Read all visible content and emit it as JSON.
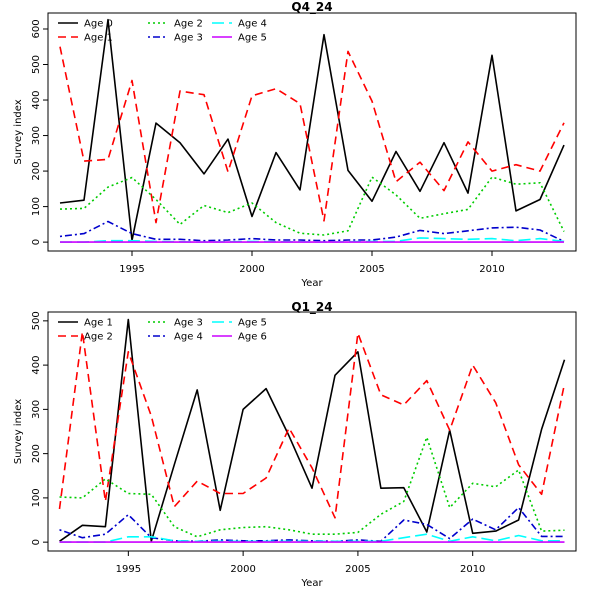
{
  "chart_data": [
    {
      "type": "line",
      "title": "Q4_24",
      "xlabel": "Year",
      "ylabel": "Survey index",
      "xlim": [
        1991.5,
        2013.5
      ],
      "ylim": [
        -25,
        645
      ],
      "xticks": [
        1995,
        2000,
        2005,
        2010
      ],
      "yticks": [
        0,
        100,
        200,
        300,
        400,
        500,
        600
      ],
      "x": [
        1992,
        1993,
        1994,
        1995,
        1996,
        1997,
        1998,
        1999,
        2000,
        2001,
        2002,
        2003,
        2004,
        2005,
        2006,
        2007,
        2008,
        2009,
        2010,
        2011,
        2012,
        2013
      ],
      "legend": "top-left",
      "series": [
        {
          "name": "Age 0",
          "color": "#000000",
          "dash": "solid",
          "values": [
            110,
            118,
            626,
            5,
            335,
            280,
            192,
            290,
            72,
            252,
            147,
            584,
            202,
            115,
            255,
            143,
            280,
            138,
            526,
            88,
            120,
            273
          ]
        },
        {
          "name": "Age 1",
          "color": "#ff0000",
          "dash": "dashed",
          "values": [
            550,
            228,
            233,
            455,
            55,
            425,
            415,
            198,
            412,
            432,
            390,
            60,
            537,
            397,
            170,
            225,
            145,
            282,
            200,
            218,
            200,
            336
          ]
        },
        {
          "name": "Age 2",
          "color": "#00cc00",
          "dash": "dotted",
          "values": [
            93,
            95,
            155,
            182,
            120,
            50,
            103,
            83,
            110,
            55,
            25,
            20,
            32,
            183,
            133,
            67,
            80,
            92,
            183,
            163,
            167,
            30
          ]
        },
        {
          "name": "Age 3",
          "color": "#0000cc",
          "dash": "dotdash",
          "values": [
            16,
            24,
            58,
            24,
            8,
            8,
            4,
            6,
            10,
            6,
            6,
            4,
            6,
            6,
            14,
            33,
            24,
            32,
            40,
            42,
            34,
            2
          ]
        },
        {
          "name": "Age 4",
          "color": "#00ffff",
          "dash": "longdash",
          "values": [
            0,
            0,
            4,
            4,
            2,
            1,
            0,
            1,
            2,
            1,
            1,
            0,
            1,
            2,
            2,
            12,
            10,
            8,
            10,
            4,
            10,
            2
          ]
        },
        {
          "name": "Age 5",
          "color": "#cc00ff",
          "dash": "solid",
          "values": [
            0,
            0,
            0,
            0,
            0,
            0,
            0,
            0,
            0,
            0,
            0,
            0,
            0,
            0,
            0,
            0,
            0,
            0,
            0,
            0,
            0,
            0
          ]
        }
      ]
    },
    {
      "type": "line",
      "title": "Q1_24",
      "xlabel": "Year",
      "ylabel": "Survey index",
      "xlim": [
        1991.5,
        2014.5
      ],
      "ylim": [
        -20,
        520
      ],
      "xticks": [
        1995,
        2000,
        2005,
        2010
      ],
      "yticks": [
        0,
        100,
        200,
        300,
        400,
        500
      ],
      "x": [
        1992,
        1993,
        1994,
        1995,
        1996,
        1997,
        1998,
        1999,
        2000,
        2001,
        2002,
        2003,
        2004,
        2005,
        2006,
        2007,
        2008,
        2009,
        2010,
        2011,
        2012,
        2013,
        2014
      ],
      "legend": "top-left",
      "series": [
        {
          "name": "Age 1",
          "color": "#000000",
          "dash": "solid",
          "values": [
            2,
            38,
            35,
            503,
            2,
            175,
            344,
            72,
            300,
            347,
            240,
            122,
            377,
            430,
            122,
            123,
            23,
            253,
            20,
            25,
            50,
            255,
            412
          ]
        },
        {
          "name": "Age 2",
          "color": "#ff0000",
          "dash": "dashed",
          "values": [
            75,
            475,
            92,
            430,
            285,
            80,
            138,
            110,
            110,
            145,
            258,
            168,
            55,
            472,
            333,
            310,
            365,
            253,
            400,
            315,
            175,
            108,
            358
          ]
        },
        {
          "name": "Age 3",
          "color": "#00cc00",
          "dash": "dotted",
          "values": [
            102,
            100,
            143,
            110,
            108,
            35,
            12,
            28,
            33,
            35,
            28,
            18,
            18,
            22,
            63,
            92,
            237,
            78,
            133,
            125,
            163,
            25,
            27
          ]
        },
        {
          "name": "Age 4",
          "color": "#0000cc",
          "dash": "dotdash",
          "values": [
            28,
            10,
            18,
            62,
            10,
            3,
            2,
            5,
            3,
            3,
            5,
            3,
            2,
            5,
            2,
            50,
            40,
            8,
            52,
            28,
            78,
            13,
            13
          ]
        },
        {
          "name": "Age 5",
          "color": "#00ffff",
          "dash": "longdash",
          "values": [
            0,
            0,
            0,
            12,
            12,
            3,
            2,
            2,
            2,
            2,
            2,
            2,
            2,
            2,
            2,
            10,
            18,
            2,
            12,
            3,
            15,
            3,
            3
          ]
        },
        {
          "name": "Age 6",
          "color": "#cc00ff",
          "dash": "solid",
          "values": [
            0,
            0,
            0,
            0,
            0,
            0,
            0,
            0,
            0,
            0,
            0,
            0,
            0,
            0,
            0,
            0,
            0,
            0,
            0,
            0,
            0,
            0,
            0
          ]
        }
      ]
    }
  ]
}
